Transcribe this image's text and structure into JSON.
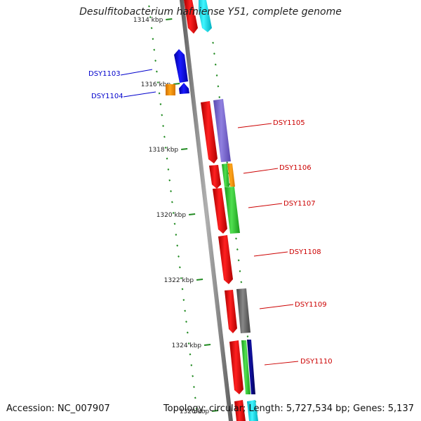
{
  "title": "Desulfitobacterium hafniense Y51, complete genome",
  "footer": {
    "accession": "Accession: NC_007907",
    "summary": "Topology: circular; Length: 5,727,534 bp; Genes: 5,137"
  },
  "scale": {
    "labels": [
      "1314 kbp",
      "1316 kbp",
      "1318 kbp",
      "1320 kbp",
      "1322 kbp",
      "1324 kbp",
      "1326 kbp"
    ]
  },
  "gene_labels": [
    {
      "id": "DSY1103",
      "color": "#0000cc"
    },
    {
      "id": "DSY1104",
      "color": "#0000cc"
    },
    {
      "id": "DSY1105",
      "color": "#cc0000"
    },
    {
      "id": "DSY1106",
      "color": "#cc0000"
    },
    {
      "id": "DSY1107",
      "color": "#cc0000"
    },
    {
      "id": "DSY1108",
      "color": "#cc0000"
    },
    {
      "id": "DSY1109",
      "color": "#cc0000"
    },
    {
      "id": "DSY1110",
      "color": "#cc0000"
    }
  ],
  "colors": {
    "backbone": "#808080",
    "tick": "#228b22",
    "red": "#ee1111",
    "blue": "#0a0ae6",
    "orange": "#ff9900",
    "purple": "#7b68cc",
    "green": "#33cc33",
    "gray": "#666666",
    "cyan": "#00e5ee",
    "navy": "#000080"
  }
}
